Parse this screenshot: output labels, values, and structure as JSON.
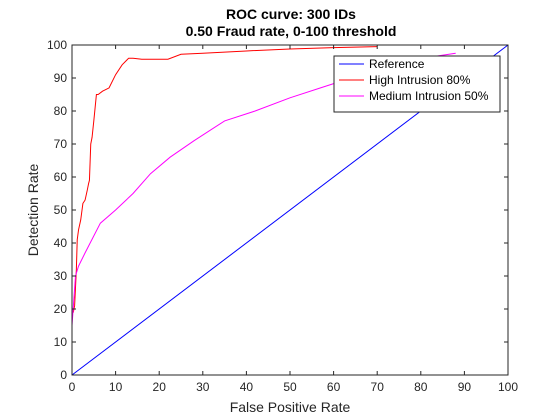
{
  "chart_data": {
    "type": "line",
    "title": "ROC curve: 300 IDs",
    "subtitle": "0.50 Fraud rate, 0-100 threshold",
    "xlabel": "False Positive Rate",
    "ylabel": "Detection Rate",
    "xlim": [
      0,
      100
    ],
    "ylim": [
      0,
      100
    ],
    "xticks": [
      0,
      10,
      20,
      30,
      40,
      50,
      60,
      70,
      80,
      90,
      100
    ],
    "yticks": [
      0,
      10,
      20,
      30,
      40,
      50,
      60,
      70,
      80,
      90,
      100
    ],
    "grid": false,
    "legend_position": "top-right",
    "series": [
      {
        "name": "Reference",
        "color": "#0000ff",
        "x": [
          0,
          100
        ],
        "y": [
          0,
          100
        ]
      },
      {
        "name": "High Intrusion 80%",
        "color": "#ff0000",
        "x": [
          0,
          0.3,
          0.6,
          1.0,
          1.2,
          1.5,
          2.0,
          2.5,
          3.0,
          3.5,
          3.8,
          4.0,
          4.3,
          4.6,
          5.0,
          5.3,
          5.6,
          6.0,
          7.0,
          8.5,
          10.0,
          11.5,
          13.0,
          14.0,
          16.0,
          19.0,
          22.0,
          25.0,
          30.0,
          40.0,
          50.0,
          60.0,
          70.0
        ],
        "y": [
          19,
          19,
          21,
          32,
          41,
          44,
          47,
          52,
          53,
          56,
          58,
          59,
          70,
          72,
          77,
          81,
          85,
          85,
          86,
          87,
          91,
          94,
          96,
          96,
          95.7,
          95.7,
          95.7,
          97.2,
          97.5,
          98.2,
          98.8,
          99.2,
          99.5
        ]
      },
      {
        "name": "Medium Intrusion 50%",
        "color": "#ff00ff",
        "x": [
          0,
          0.8,
          1.5,
          3.0,
          6.5,
          10.0,
          14.0,
          18.0,
          22.5,
          28.0,
          35.0,
          42.0,
          50.0,
          57.0,
          64.0,
          71.0,
          78.0,
          83.0,
          88.0
        ],
        "y": [
          15,
          30,
          33,
          37,
          46,
          50,
          55,
          61,
          66,
          71,
          77,
          80,
          84,
          87,
          90,
          93,
          95,
          96.5,
          97.5
        ]
      }
    ]
  }
}
